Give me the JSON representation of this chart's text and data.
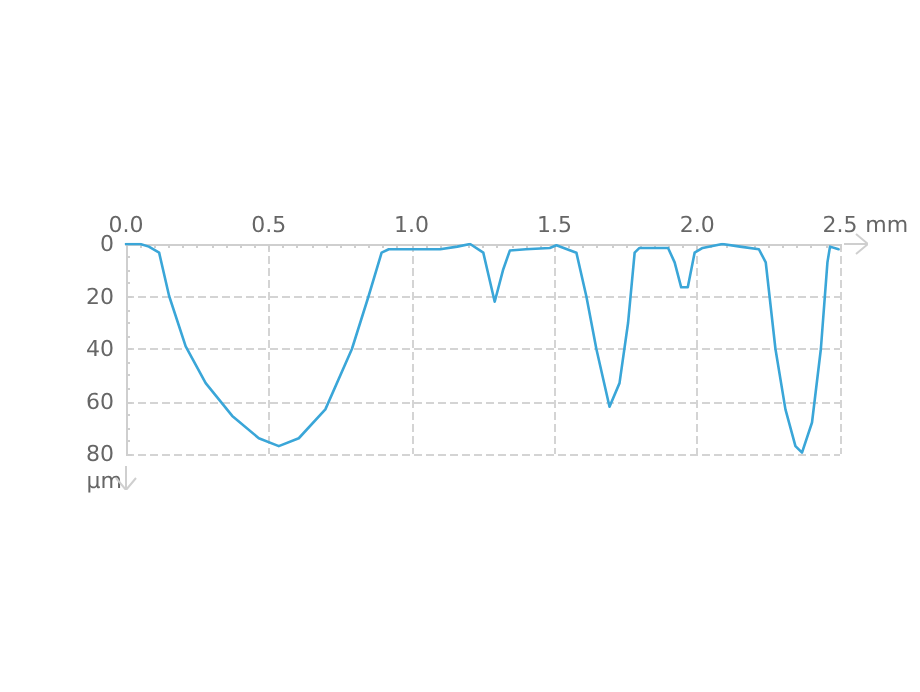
{
  "chart_data": {
    "type": "line",
    "xlabel": "mm",
    "ylabel": "µm",
    "xlim": [
      0,
      2.5
    ],
    "ylim": [
      80,
      0
    ],
    "xticks": [
      {
        "value": 0,
        "label": "0.0"
      },
      {
        "value": 0.5,
        "label": "0.5"
      },
      {
        "value": 1,
        "label": "1.0"
      },
      {
        "value": 1.5,
        "label": "1.5"
      },
      {
        "value": 2,
        "label": "2.0"
      },
      {
        "value": 2.5,
        "label": "2.5"
      }
    ],
    "yticks": [
      0,
      20,
      40,
      60,
      80
    ],
    "grid": true,
    "marker": "none",
    "line_style": "solid",
    "series": [
      {
        "color": "#3aa6d8",
        "x": [
          0,
          0.05,
          0.08,
          0.116,
          0.151,
          0.209,
          0.279,
          0.372,
          0.465,
          0.535,
          0.605,
          0.698,
          0.791,
          0.849,
          0.895,
          0.92,
          1.0,
          1.1,
          1.16,
          1.205,
          1.251,
          1.291,
          1.321,
          1.344,
          1.4,
          1.484,
          1.507,
          1.577,
          1.612,
          1.647,
          1.693,
          1.728,
          1.758,
          1.781,
          1.798,
          1.85,
          1.898,
          1.921,
          1.944,
          1.967,
          1.991,
          2.019,
          2.088,
          2.15,
          2.216,
          2.24,
          2.274,
          2.309,
          2.344,
          2.367,
          2.402,
          2.433,
          2.456,
          2.465,
          2.495
        ],
        "values": [
          0,
          0,
          1,
          3.3,
          19.8,
          39,
          53,
          65.5,
          74,
          77,
          74,
          63,
          40,
          20,
          3.3,
          2,
          2,
          2,
          1,
          0,
          3.3,
          22,
          9.6,
          2.5,
          2,
          1.5,
          0.5,
          3.3,
          20,
          40,
          62,
          53,
          30,
          3.3,
          1.5,
          1.5,
          1.5,
          7,
          16.5,
          16.5,
          3.3,
          1.5,
          0,
          1,
          2,
          7,
          40,
          63,
          77,
          79.5,
          68,
          40,
          7,
          1,
          2
        ]
      }
    ]
  }
}
